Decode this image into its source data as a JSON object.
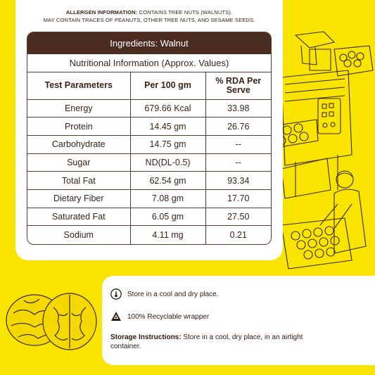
{
  "allergen": {
    "label": "ALLERGEN INFORMATION:",
    "text": "CONTAINS TREE NUTS (WALNUTS).",
    "line2": "MAY CONTAIN TRACES OF PEANUTS, OTHER TREE NUTS, AND SESAME SEEDS."
  },
  "table": {
    "title": "Ingredients: Walnut",
    "subtitle": "Nutritional Information (Approx. Values)",
    "headers": [
      "Test Parameters",
      "Per 100 gm",
      "% RDA Per Serve"
    ],
    "rows": [
      [
        "Energy",
        "679.66 Kcal",
        "33.98"
      ],
      [
        "Protein",
        "14.45 gm",
        "26.76"
      ],
      [
        "Carbohydrate",
        "14.75 gm",
        "--"
      ],
      [
        "Sugar",
        "ND(DL-0.5)",
        "--"
      ],
      [
        "Total Fat",
        "62.54 gm",
        "93.34"
      ],
      [
        "Dietary Fiber",
        "7.08 gm",
        "17.70"
      ],
      [
        "Saturated Fat",
        "6.05 gm",
        "27.50"
      ],
      [
        "Sodium",
        "4.11 mg",
        "0.21"
      ]
    ]
  },
  "notes": {
    "store_cool": "Store in a cool and dry place.",
    "recyclable": "100% Recyclable wrapper",
    "storage_label": "Storage Instructions:",
    "storage_text": "Store in a cool, dry place, in an airtight container."
  },
  "colors": {
    "background": "#f9e400",
    "brown": "#4a2c20",
    "card": "#ffffff"
  },
  "icons": [
    "thermometer-icon",
    "recycle-icon",
    "walnut-illustration",
    "factory-worker-illustration"
  ]
}
